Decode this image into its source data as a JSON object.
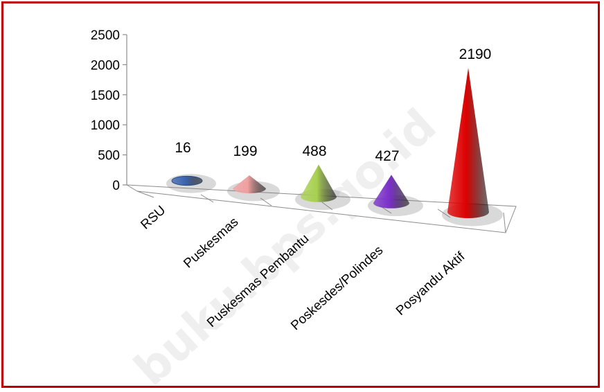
{
  "chart_data": {
    "type": "bar",
    "categories": [
      "RSU",
      "Puskesmas",
      "Puskesmas Pembantu",
      "Poskesdes/Polindes",
      "Posyandu Aktif"
    ],
    "values": [
      16,
      199,
      488,
      427,
      2190
    ],
    "title": "",
    "xlabel": "",
    "ylabel": "",
    "ylim": [
      0,
      2500
    ],
    "yticks": [
      0,
      500,
      1000,
      1500,
      2000,
      2500
    ],
    "grid": false,
    "legend": "none",
    "colors": [
      "#3a64b0",
      "#f0a0a0",
      "#a8d050",
      "#7a30c8",
      "#dd0000"
    ]
  },
  "watermark": "buku.bps.go.id"
}
